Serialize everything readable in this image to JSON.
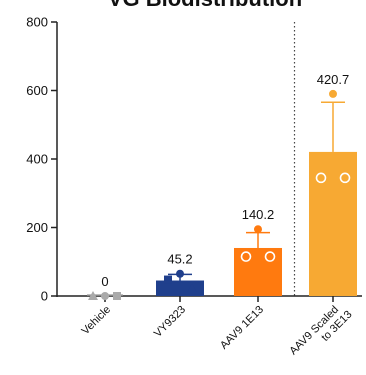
{
  "chart_data": {
    "type": "bar",
    "title": "VG Biodistribution",
    "xlabel": "",
    "ylabel": "",
    "ylim": [
      0,
      800
    ],
    "yticks": [
      0,
      200,
      400,
      600,
      800
    ],
    "categories": [
      "Vehicle",
      "VY9323",
      "AAV9 1E13",
      "AAV9 Scaled to 3E13"
    ],
    "category_label_lines": [
      [
        "Vehicle"
      ],
      [
        "VY9323"
      ],
      [
        "AAV9 1E13"
      ],
      [
        "AAV9 Scaled",
        "to 3E13"
      ]
    ],
    "values": [
      0,
      45.2,
      140.2,
      420.7
    ],
    "value_labels": [
      "0",
      "45.2",
      "140.2",
      "420.7"
    ],
    "errors": [
      0,
      18,
      45,
      145
    ],
    "individual_points": [
      [
        0,
        0,
        0
      ],
      [
        65,
        48,
        22
      ],
      [
        195,
        115,
        115
      ],
      [
        590,
        345,
        345
      ]
    ],
    "point_markers": [
      [
        "circle",
        "triangle",
        "square"
      ],
      [
        "circle",
        "square",
        "triangle"
      ],
      [
        "circle",
        "hollow-circle",
        "hollow-circle"
      ],
      [
        "circle",
        "hollow-circle",
        "hollow-circle"
      ]
    ],
    "colors": [
      "#c8c8c8",
      "#1f3f8c",
      "#ff7a0f",
      "#f7a933"
    ],
    "point_colors": [
      "#aaaaaa",
      "#1f3f8c",
      "#ff7a0f",
      "#f7a933"
    ],
    "grid": false,
    "legend": "none",
    "divider_after_category": 2
  }
}
